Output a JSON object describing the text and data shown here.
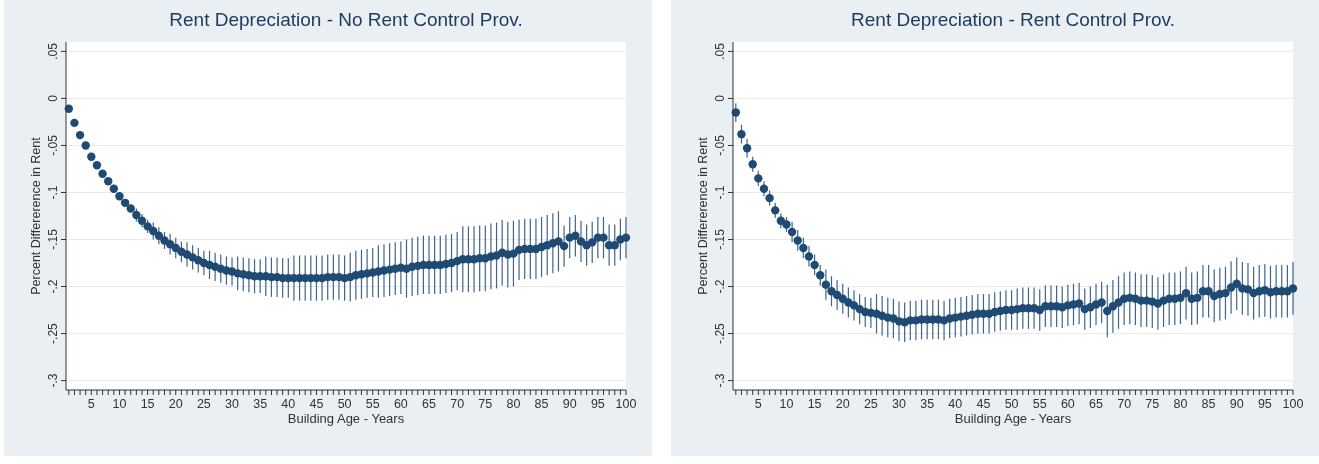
{
  "chart_data": [
    {
      "type": "scatter",
      "title": "Rent Depreciation - No Rent Control Prov.",
      "xlabel": "Building Age - Years",
      "ylabel": "Percent Differerence in Rent",
      "color": "#1f4a73",
      "marker": "circle",
      "grid": "y",
      "xlim": [
        0.5,
        100
      ],
      "ylim": [
        -0.31,
        0.06
      ],
      "yticks": [
        {
          "value": 0.05,
          "label": ".05"
        },
        0,
        {
          "value": -0.05,
          "label": "-.05"
        },
        {
          "value": -0.1,
          "label": "-.1"
        },
        {
          "value": -0.15,
          "label": "-.15"
        },
        {
          "value": -0.2,
          "label": "-.2"
        },
        {
          "value": -0.25,
          "label": "-.25"
        },
        {
          "value": -0.3,
          "label": "-.3"
        }
      ],
      "xticks": [
        {
          "value": 1,
          "label": null
        },
        {
          "value": 2,
          "label": null
        },
        {
          "value": 3,
          "label": null
        },
        {
          "value": 4,
          "label": null
        },
        5,
        {
          "value": 6,
          "label": null
        },
        {
          "value": 7,
          "label": null
        },
        {
          "value": 8,
          "label": null
        },
        {
          "value": 9,
          "label": null
        },
        10,
        {
          "value": 11,
          "label": null
        },
        {
          "value": 12,
          "label": null
        },
        {
          "value": 13,
          "label": null
        },
        {
          "value": 14,
          "label": null
        },
        15,
        {
          "value": 16,
          "label": null
        },
        {
          "value": 17,
          "label": null
        },
        {
          "value": 18,
          "label": null
        },
        {
          "value": 19,
          "label": null
        },
        20,
        {
          "value": 21,
          "label": null
        },
        {
          "value": 22,
          "label": null
        },
        {
          "value": 23,
          "label": null
        },
        {
          "value": 24,
          "label": null
        },
        25,
        {
          "value": 26,
          "label": null
        },
        {
          "value": 27,
          "label": null
        },
        {
          "value": 28,
          "label": null
        },
        {
          "value": 29,
          "label": null
        },
        30,
        {
          "value": 31,
          "label": null
        },
        {
          "value": 32,
          "label": null
        },
        {
          "value": 33,
          "label": null
        },
        {
          "value": 34,
          "label": null
        },
        35,
        {
          "value": 36,
          "label": null
        },
        {
          "value": 37,
          "label": null
        },
        {
          "value": 38,
          "label": null
        },
        {
          "value": 39,
          "label": null
        },
        40,
        {
          "value": 41,
          "label": null
        },
        {
          "value": 42,
          "label": null
        },
        {
          "value": 43,
          "label": null
        },
        {
          "value": 44,
          "label": null
        },
        45,
        {
          "value": 46,
          "label": null
        },
        {
          "value": 47,
          "label": null
        },
        {
          "value": 48,
          "label": null
        },
        {
          "value": 49,
          "label": null
        },
        50,
        {
          "value": 51,
          "label": null
        },
        {
          "value": 52,
          "label": null
        },
        {
          "value": 53,
          "label": null
        },
        {
          "value": 54,
          "label": null
        },
        55,
        {
          "value": 56,
          "label": null
        },
        {
          "value": 57,
          "label": null
        },
        {
          "value": 58,
          "label": null
        },
        {
          "value": 59,
          "label": null
        },
        60,
        {
          "value": 61,
          "label": null
        },
        {
          "value": 62,
          "label": null
        },
        {
          "value": 63,
          "label": null
        },
        {
          "value": 64,
          "label": null
        },
        65,
        {
          "value": 66,
          "label": null
        },
        {
          "value": 67,
          "label": null
        },
        {
          "value": 68,
          "label": null
        },
        {
          "value": 69,
          "label": null
        },
        70,
        {
          "value": 71,
          "label": null
        },
        {
          "value": 72,
          "label": null
        },
        {
          "value": 73,
          "label": null
        },
        {
          "value": 74,
          "label": null
        },
        75,
        {
          "value": 76,
          "label": null
        },
        {
          "value": 77,
          "label": null
        },
        {
          "value": 78,
          "label": null
        },
        {
          "value": 79,
          "label": null
        },
        80,
        {
          "value": 81,
          "label": null
        },
        {
          "value": 82,
          "label": null
        },
        {
          "value": 83,
          "label": null
        },
        {
          "value": 84,
          "label": null
        },
        85,
        {
          "value": 86,
          "label": null
        },
        {
          "value": 87,
          "label": null
        },
        {
          "value": 88,
          "label": null
        },
        {
          "value": 89,
          "label": null
        },
        90,
        {
          "value": 91,
          "label": null
        },
        {
          "value": 92,
          "label": null
        },
        {
          "value": 93,
          "label": null
        },
        {
          "value": 94,
          "label": null
        },
        95,
        {
          "value": 96,
          "label": null
        },
        {
          "value": 97,
          "label": null
        },
        {
          "value": 98,
          "label": null
        },
        {
          "value": 99,
          "label": null
        },
        100
      ],
      "x": [
        1,
        2,
        3,
        4,
        5,
        6,
        7,
        8,
        9,
        10,
        11,
        12,
        13,
        14,
        15,
        16,
        17,
        18,
        19,
        20,
        21,
        22,
        23,
        24,
        25,
        26,
        27,
        28,
        29,
        30,
        31,
        32,
        33,
        34,
        35,
        36,
        37,
        38,
        39,
        40,
        41,
        42,
        43,
        44,
        45,
        46,
        47,
        48,
        49,
        50,
        51,
        52,
        53,
        54,
        55,
        56,
        57,
        58,
        59,
        60,
        61,
        62,
        63,
        64,
        65,
        66,
        67,
        68,
        69,
        70,
        71,
        72,
        73,
        74,
        75,
        76,
        77,
        78,
        79,
        80,
        81,
        82,
        83,
        84,
        85,
        86,
        87,
        88,
        89,
        90,
        91,
        92,
        93,
        94,
        95,
        96,
        97,
        98,
        99,
        100
      ],
      "values": [
        -0.011,
        -0.026,
        -0.039,
        -0.05,
        -0.062,
        -0.071,
        -0.08,
        -0.088,
        -0.096,
        -0.104,
        -0.111,
        -0.117,
        -0.124,
        -0.13,
        -0.136,
        -0.141,
        -0.146,
        -0.151,
        -0.155,
        -0.159,
        -0.163,
        -0.166,
        -0.169,
        -0.172,
        -0.175,
        -0.177,
        -0.179,
        -0.181,
        -0.183,
        -0.184,
        -0.186,
        -0.187,
        -0.188,
        -0.189,
        -0.189,
        -0.189,
        -0.19,
        -0.19,
        -0.191,
        -0.191,
        -0.191,
        -0.191,
        -0.191,
        -0.191,
        -0.191,
        -0.191,
        -0.19,
        -0.19,
        -0.19,
        -0.191,
        -0.19,
        -0.188,
        -0.187,
        -0.186,
        -0.185,
        -0.184,
        -0.183,
        -0.182,
        -0.181,
        -0.18,
        -0.181,
        -0.179,
        -0.178,
        -0.177,
        -0.177,
        -0.177,
        -0.177,
        -0.176,
        -0.175,
        -0.173,
        -0.171,
        -0.171,
        -0.171,
        -0.17,
        -0.17,
        -0.168,
        -0.167,
        -0.164,
        -0.166,
        -0.165,
        -0.161,
        -0.16,
        -0.16,
        -0.16,
        -0.158,
        -0.156,
        -0.154,
        -0.152,
        -0.157,
        -0.148,
        -0.146,
        -0.152,
        -0.156,
        -0.153,
        -0.148,
        -0.148,
        -0.156,
        -0.156,
        -0.15,
        -0.148
      ],
      "errors": [
        0.002,
        0.002,
        0.002,
        0.002,
        0.002,
        0.002,
        0.002,
        0.002,
        0.004,
        0.004,
        0.004,
        0.004,
        0.007,
        0.007,
        0.007,
        0.009,
        0.009,
        0.009,
        0.011,
        0.011,
        0.011,
        0.013,
        0.013,
        0.013,
        0.013,
        0.015,
        0.015,
        0.015,
        0.015,
        0.015,
        0.018,
        0.018,
        0.018,
        0.018,
        0.018,
        0.021,
        0.021,
        0.021,
        0.021,
        0.021,
        0.024,
        0.024,
        0.024,
        0.024,
        0.024,
        0.024,
        0.024,
        0.024,
        0.024,
        0.024,
        0.026,
        0.026,
        0.026,
        0.026,
        0.026,
        0.028,
        0.028,
        0.028,
        0.028,
        0.028,
        0.031,
        0.031,
        0.031,
        0.031,
        0.031,
        0.031,
        0.031,
        0.031,
        0.031,
        0.031,
        0.035,
        0.035,
        0.035,
        0.035,
        0.035,
        0.035,
        0.035,
        0.035,
        0.035,
        0.035,
        0.032,
        0.032,
        0.032,
        0.032,
        0.032,
        0.032,
        0.032,
        0.032,
        0.022,
        0.022,
        0.022,
        0.022,
        0.022,
        0.022,
        0.022,
        0.022,
        0.022,
        0.022,
        0.022,
        0.022
      ]
    },
    {
      "type": "scatter",
      "title": "Rent Depreciation - Rent Control Prov.",
      "xlabel": "Building Age - Years",
      "ylabel": "Percent Differerence in Rent",
      "color": "#1f4a73",
      "marker": "circle",
      "grid": "y",
      "xlim": [
        0.5,
        100
      ],
      "ylim": [
        -0.31,
        0.06
      ],
      "yticks": [
        {
          "value": 0.05,
          "label": ".05"
        },
        0,
        {
          "value": -0.05,
          "label": "-.05"
        },
        {
          "value": -0.1,
          "label": "-.1"
        },
        {
          "value": -0.15,
          "label": "-.15"
        },
        {
          "value": -0.2,
          "label": "-.2"
        },
        {
          "value": -0.25,
          "label": "-.25"
        },
        {
          "value": -0.3,
          "label": "-.3"
        }
      ],
      "xticks": [
        {
          "value": 1,
          "label": null
        },
        {
          "value": 2,
          "label": null
        },
        {
          "value": 3,
          "label": null
        },
        {
          "value": 4,
          "label": null
        },
        5,
        {
          "value": 6,
          "label": null
        },
        {
          "value": 7,
          "label": null
        },
        {
          "value": 8,
          "label": null
        },
        {
          "value": 9,
          "label": null
        },
        10,
        {
          "value": 11,
          "label": null
        },
        {
          "value": 12,
          "label": null
        },
        {
          "value": 13,
          "label": null
        },
        {
          "value": 14,
          "label": null
        },
        15,
        {
          "value": 16,
          "label": null
        },
        {
          "value": 17,
          "label": null
        },
        {
          "value": 18,
          "label": null
        },
        {
          "value": 19,
          "label": null
        },
        20,
        {
          "value": 21,
          "label": null
        },
        {
          "value": 22,
          "label": null
        },
        {
          "value": 23,
          "label": null
        },
        {
          "value": 24,
          "label": null
        },
        25,
        {
          "value": 26,
          "label": null
        },
        {
          "value": 27,
          "label": null
        },
        {
          "value": 28,
          "label": null
        },
        {
          "value": 29,
          "label": null
        },
        30,
        {
          "value": 31,
          "label": null
        },
        {
          "value": 32,
          "label": null
        },
        {
          "value": 33,
          "label": null
        },
        {
          "value": 34,
          "label": null
        },
        35,
        {
          "value": 36,
          "label": null
        },
        {
          "value": 37,
          "label": null
        },
        {
          "value": 38,
          "label": null
        },
        {
          "value": 39,
          "label": null
        },
        40,
        {
          "value": 41,
          "label": null
        },
        {
          "value": 42,
          "label": null
        },
        {
          "value": 43,
          "label": null
        },
        {
          "value": 44,
          "label": null
        },
        45,
        {
          "value": 46,
          "label": null
        },
        {
          "value": 47,
          "label": null
        },
        {
          "value": 48,
          "label": null
        },
        {
          "value": 49,
          "label": null
        },
        50,
        {
          "value": 51,
          "label": null
        },
        {
          "value": 52,
          "label": null
        },
        {
          "value": 53,
          "label": null
        },
        {
          "value": 54,
          "label": null
        },
        55,
        {
          "value": 56,
          "label": null
        },
        {
          "value": 57,
          "label": null
        },
        {
          "value": 58,
          "label": null
        },
        {
          "value": 59,
          "label": null
        },
        60,
        {
          "value": 61,
          "label": null
        },
        {
          "value": 62,
          "label": null
        },
        {
          "value": 63,
          "label": null
        },
        {
          "value": 64,
          "label": null
        },
        65,
        {
          "value": 66,
          "label": null
        },
        {
          "value": 67,
          "label": null
        },
        {
          "value": 68,
          "label": null
        },
        {
          "value": 69,
          "label": null
        },
        70,
        {
          "value": 71,
          "label": null
        },
        {
          "value": 72,
          "label": null
        },
        {
          "value": 73,
          "label": null
        },
        {
          "value": 74,
          "label": null
        },
        75,
        {
          "value": 76,
          "label": null
        },
        {
          "value": 77,
          "label": null
        },
        {
          "value": 78,
          "label": null
        },
        {
          "value": 79,
          "label": null
        },
        80,
        {
          "value": 81,
          "label": null
        },
        {
          "value": 82,
          "label": null
        },
        {
          "value": 83,
          "label": null
        },
        {
          "value": 84,
          "label": null
        },
        85,
        {
          "value": 86,
          "label": null
        },
        {
          "value": 87,
          "label": null
        },
        {
          "value": 88,
          "label": null
        },
        {
          "value": 89,
          "label": null
        },
        90,
        {
          "value": 91,
          "label": null
        },
        {
          "value": 92,
          "label": null
        },
        {
          "value": 93,
          "label": null
        },
        {
          "value": 94,
          "label": null
        },
        95,
        {
          "value": 96,
          "label": null
        },
        {
          "value": 97,
          "label": null
        },
        {
          "value": 98,
          "label": null
        },
        {
          "value": 99,
          "label": null
        },
        100
      ],
      "x": [
        1,
        2,
        3,
        4,
        5,
        6,
        7,
        8,
        9,
        10,
        11,
        12,
        13,
        14,
        15,
        16,
        17,
        18,
        19,
        20,
        21,
        22,
        23,
        24,
        25,
        26,
        27,
        28,
        29,
        30,
        31,
        32,
        33,
        34,
        35,
        36,
        37,
        38,
        39,
        40,
        41,
        42,
        43,
        44,
        45,
        46,
        47,
        48,
        49,
        50,
        51,
        52,
        53,
        54,
        55,
        56,
        57,
        58,
        59,
        60,
        61,
        62,
        63,
        64,
        65,
        66,
        67,
        68,
        69,
        70,
        71,
        72,
        73,
        74,
        75,
        76,
        77,
        78,
        79,
        80,
        81,
        82,
        83,
        84,
        85,
        86,
        87,
        88,
        89,
        90,
        91,
        92,
        93,
        94,
        95,
        96,
        97,
        98,
        99,
        100
      ],
      "values": [
        -0.015,
        -0.038,
        -0.053,
        -0.07,
        -0.085,
        -0.096,
        -0.106,
        -0.119,
        -0.13,
        -0.134,
        -0.142,
        -0.151,
        -0.159,
        -0.168,
        -0.177,
        -0.188,
        -0.198,
        -0.205,
        -0.209,
        -0.213,
        -0.217,
        -0.22,
        -0.224,
        -0.227,
        -0.228,
        -0.229,
        -0.231,
        -0.233,
        -0.234,
        -0.237,
        -0.238,
        -0.236,
        -0.236,
        -0.235,
        -0.235,
        -0.235,
        -0.235,
        -0.236,
        -0.234,
        -0.233,
        -0.232,
        -0.231,
        -0.23,
        -0.229,
        -0.229,
        -0.229,
        -0.227,
        -0.226,
        -0.225,
        -0.225,
        -0.224,
        -0.223,
        -0.223,
        -0.223,
        -0.225,
        -0.221,
        -0.221,
        -0.221,
        -0.222,
        -0.22,
        -0.219,
        -0.218,
        -0.224,
        -0.222,
        -0.219,
        -0.217,
        -0.226,
        -0.221,
        -0.217,
        -0.213,
        -0.212,
        -0.213,
        -0.215,
        -0.215,
        -0.216,
        -0.218,
        -0.215,
        -0.213,
        -0.213,
        -0.212,
        -0.207,
        -0.213,
        -0.212,
        -0.205,
        -0.205,
        -0.21,
        -0.208,
        -0.207,
        -0.201,
        -0.197,
        -0.202,
        -0.203,
        -0.207,
        -0.205,
        -0.204,
        -0.206,
        -0.205,
        -0.205,
        -0.205,
        -0.202
      ],
      "errors": [
        0.01,
        0.01,
        0.01,
        0.008,
        0.008,
        0.008,
        0.008,
        0.008,
        0.008,
        0.008,
        0.011,
        0.011,
        0.011,
        0.011,
        0.011,
        0.011,
        0.016,
        0.016,
        0.016,
        0.016,
        0.016,
        0.016,
        0.016,
        0.016,
        0.016,
        0.021,
        0.021,
        0.021,
        0.021,
        0.021,
        0.021,
        0.021,
        0.021,
        0.021,
        0.021,
        0.021,
        0.021,
        0.021,
        0.021,
        0.021,
        0.021,
        0.021,
        0.021,
        0.021,
        0.021,
        0.021,
        0.021,
        0.021,
        0.021,
        0.021,
        0.022,
        0.022,
        0.022,
        0.022,
        0.022,
        0.022,
        0.022,
        0.022,
        0.022,
        0.022,
        0.022,
        0.022,
        0.022,
        0.022,
        0.022,
        0.022,
        0.028,
        0.028,
        0.028,
        0.028,
        0.028,
        0.028,
        0.028,
        0.028,
        0.028,
        0.028,
        0.028,
        0.028,
        0.028,
        0.028,
        0.028,
        0.028,
        0.028,
        0.028,
        0.028,
        0.028,
        0.028,
        0.028,
        0.028,
        0.028,
        0.028,
        0.028,
        0.028,
        0.028,
        0.028,
        0.028,
        0.028,
        0.028,
        0.028,
        0.028
      ]
    }
  ]
}
